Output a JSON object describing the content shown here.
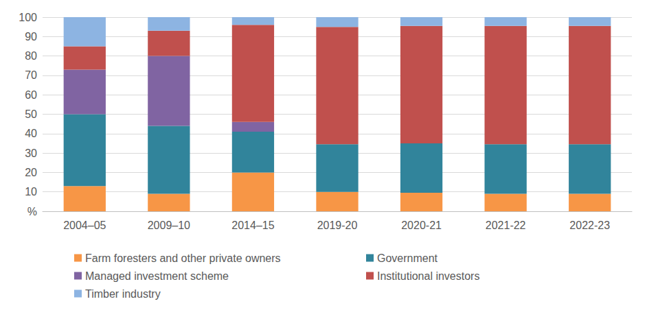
{
  "chart_data": {
    "type": "bar",
    "stacked": true,
    "grid": true,
    "legend": "bottom",
    "categories": [
      "2004–05",
      "2009–10",
      "2014–15",
      "2019-20",
      "2020-21",
      "2021-22",
      "2022-23"
    ],
    "series": [
      {
        "name": "Farm foresters and other private owners",
        "color": "#F79646",
        "values": [
          13,
          9,
          20,
          10,
          9.5,
          9,
          9
        ]
      },
      {
        "name": "Government",
        "color": "#31849B",
        "values": [
          37,
          35,
          21,
          24.5,
          25.5,
          25.5,
          25.5
        ]
      },
      {
        "name": "Managed investment scheme",
        "color": "#8064A2",
        "values": [
          23,
          36,
          5,
          0,
          0,
          0,
          0
        ]
      },
      {
        "name": "Institutional investors",
        "color": "#C0504D",
        "values": [
          12,
          13,
          50,
          60.5,
          60.5,
          61,
          61
        ]
      },
      {
        "name": "Timber industry",
        "color": "#8DB4E2",
        "values": [
          15,
          7,
          4,
          5,
          4.5,
          4.5,
          4.5
        ]
      }
    ],
    "ylim": [
      0,
      100
    ],
    "yticks": [
      {
        "value": 0,
        "label": "%"
      },
      10,
      20,
      30,
      40,
      50,
      60,
      70,
      80,
      90,
      100
    ]
  }
}
